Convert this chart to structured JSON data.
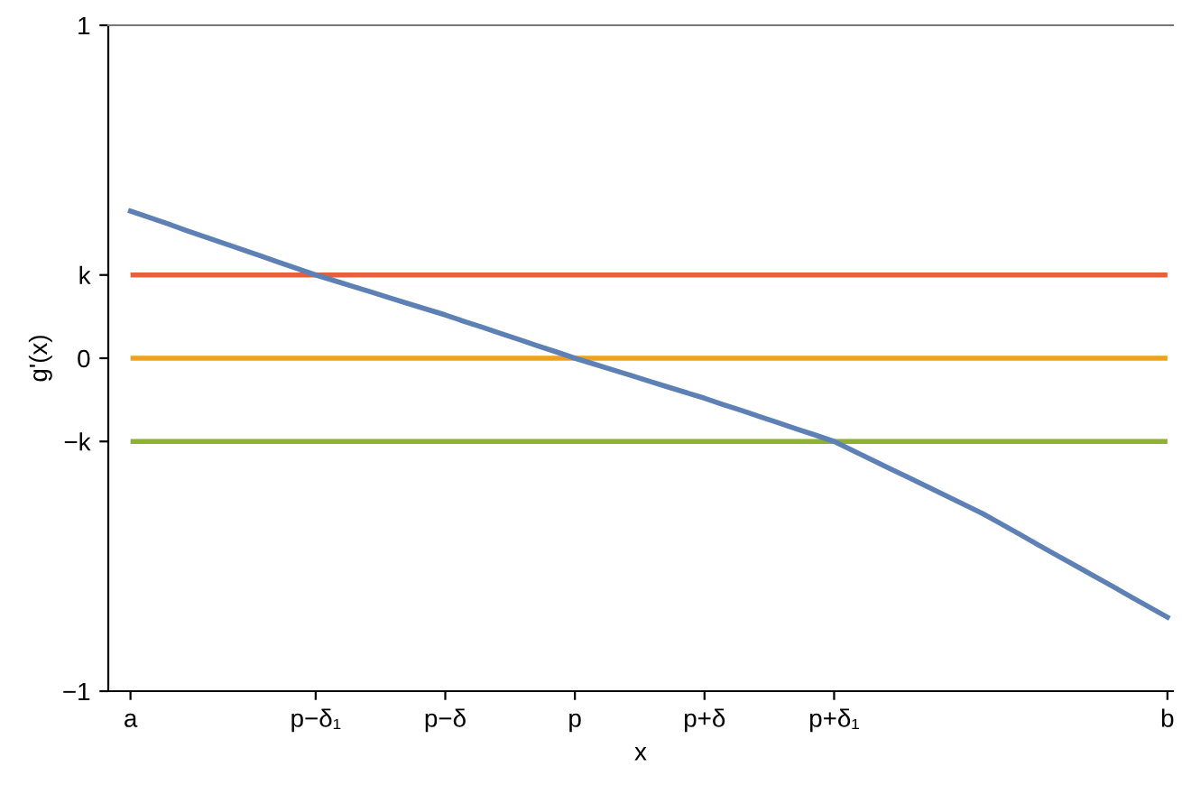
{
  "chart_data": {
    "type": "line",
    "xlabel": "x",
    "ylabel": "g'(x)",
    "categories": [
      "a",
      null,
      null,
      null,
      null,
      null,
      null,
      null,
      null,
      null,
      "p−δ₁",
      null,
      null,
      null,
      null,
      null,
      null,
      "p−δ",
      null,
      null,
      null,
      null,
      null,
      null,
      "p",
      null,
      null,
      null,
      null,
      null,
      null,
      "p+δ",
      null,
      null,
      null,
      null,
      null,
      null,
      "p+δ₁",
      null,
      null,
      null,
      null,
      null,
      null,
      null,
      null,
      null,
      null,
      null,
      null,
      null,
      null,
      null,
      null,
      null,
      "b"
    ],
    "ylim": [
      -1,
      1
    ],
    "yticks": [
      {
        "value": -1,
        "label": "−1"
      },
      {
        "value": -0.25,
        "label": "−k"
      },
      0,
      {
        "value": 0.25,
        "label": "k"
      },
      1
    ],
    "series": [
      {
        "color": "#5e81b5",
        "values": [
          0.442,
          0.423,
          0.404,
          0.384,
          0.365,
          0.346,
          0.327,
          0.308,
          0.288,
          0.269,
          0.25,
          0.233,
          0.216,
          0.199,
          0.181,
          0.164,
          0.147,
          0.13,
          0.111,
          0.093,
          0.074,
          0.056,
          0.037,
          0.019,
          0,
          -0.017,
          -0.034,
          -0.051,
          -0.069,
          -0.086,
          -0.103,
          -0.12,
          -0.139,
          -0.157,
          -0.176,
          -0.194,
          -0.213,
          -0.231,
          -0.25,
          -0.277,
          -0.304,
          -0.331,
          -0.358,
          -0.385,
          -0.412,
          -0.439,
          -0.466,
          -0.497,
          -0.528,
          -0.56,
          -0.591,
          -0.622,
          -0.653,
          -0.684,
          -0.716,
          -0.747,
          -0.778
        ]
      }
    ],
    "ref_lines": [
      {
        "axis": "y",
        "value": 0.25,
        "color": "#e5613c"
      },
      {
        "axis": "y",
        "value": 0,
        "color": "#f0a020"
      },
      {
        "axis": "y",
        "value": -0.25,
        "color": "#8fb131"
      }
    ],
    "grid": false,
    "legend": false
  }
}
